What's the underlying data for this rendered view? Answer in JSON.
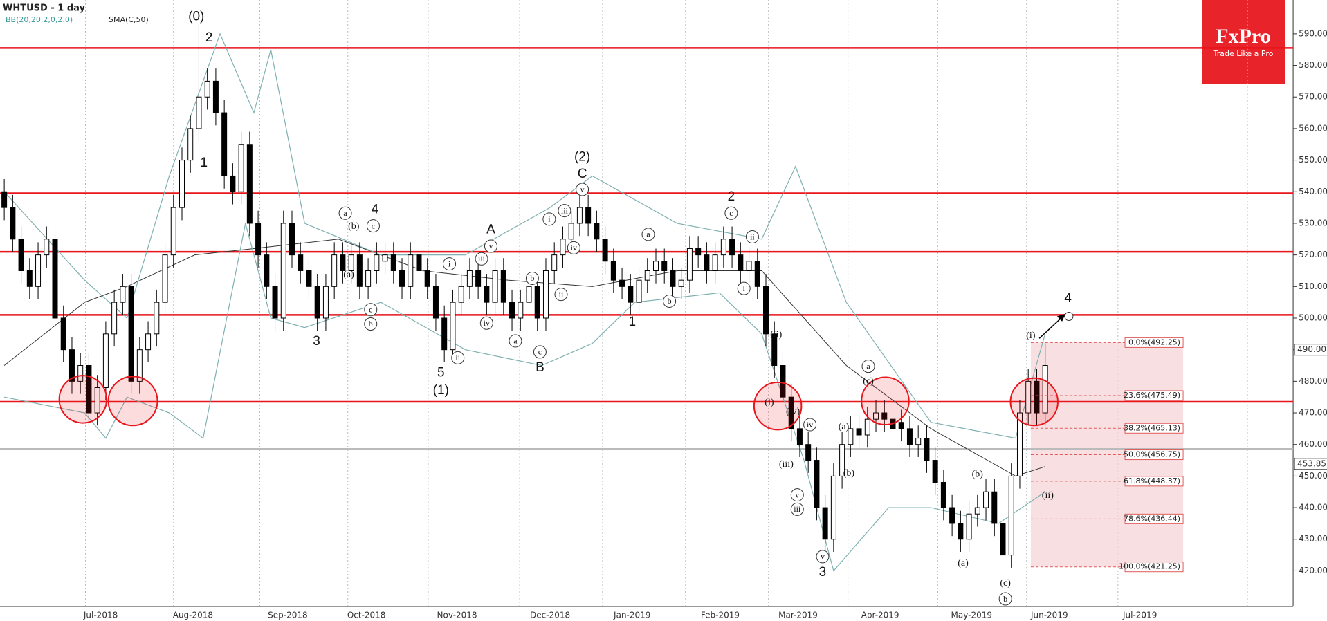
{
  "chart_data": {
    "type": "candlestick",
    "title": "WHTUSD - 1 day",
    "indicator_labels": [
      "BB(20,20,2,0,2.0)",
      "SMA(C,50)"
    ],
    "logo": {
      "brand": "FxPro",
      "tagline": "Trade Like a Pro"
    },
    "ylim": [
      408.7,
      600.7
    ],
    "yticks": [
      {
        "value": 420,
        "label": "420.00"
      },
      {
        "value": 430,
        "label": "430.00"
      },
      {
        "value": 440,
        "label": "440.00"
      },
      {
        "value": 450,
        "label": "450.00"
      },
      {
        "value": 460,
        "label": "460.00"
      },
      {
        "value": 470,
        "label": "470.00"
      },
      {
        "value": 480,
        "label": "480.00"
      },
      {
        "value": 490,
        "label": "490.00"
      },
      {
        "value": 500,
        "label": "500.00"
      },
      {
        "value": 510,
        "label": "510.00"
      },
      {
        "value": 520,
        "label": "520.00"
      },
      {
        "value": 530,
        "label": "530.00"
      },
      {
        "value": 540,
        "label": "540.00"
      },
      {
        "value": 550,
        "label": "550.00"
      },
      {
        "value": 560,
        "label": "560.00"
      },
      {
        "value": 570,
        "label": "570.00"
      },
      {
        "value": 580,
        "label": "580.00"
      },
      {
        "value": 590,
        "label": "590.00"
      }
    ],
    "month_labels": [
      "Jul-2018",
      "Aug-2018",
      "Sep-2018",
      "Oct-2018",
      "Nov-2018",
      "Dec-2018",
      "Jan-2019",
      "Feb-2019",
      "Mar-2019",
      "Apr-2019",
      "May-2019",
      "Jun-2019",
      "Jul-2019"
    ],
    "open": [
      540,
      535,
      525,
      515,
      510,
      520,
      525,
      500,
      490,
      480,
      485,
      470,
      478,
      495,
      505,
      510,
      480,
      490,
      495,
      505,
      520,
      535,
      550,
      560,
      570,
      575,
      565,
      545,
      540,
      555,
      530,
      520,
      510,
      500,
      530,
      520,
      515,
      510,
      500,
      510,
      520,
      515,
      520,
      510,
      515,
      518,
      520,
      515,
      510,
      520,
      515,
      510,
      500,
      490,
      505,
      510,
      515,
      510,
      505,
      515,
      505,
      500,
      505,
      510,
      500,
      515,
      520,
      525,
      530,
      535,
      530,
      525,
      518,
      512,
      510,
      505,
      512,
      515,
      518,
      515,
      510,
      512,
      522,
      520,
      515,
      520,
      525,
      520,
      515,
      518,
      510,
      495,
      485,
      475,
      465,
      460,
      455,
      440,
      430,
      450,
      460,
      465,
      463,
      468,
      470,
      468,
      467,
      465,
      460,
      462,
      455,
      448,
      440,
      435,
      430,
      438,
      440,
      445,
      435,
      425,
      450,
      470,
      480,
      470
    ],
    "high": [
      544,
      539,
      529,
      519,
      524,
      529,
      529,
      504,
      494,
      489,
      489,
      482,
      499,
      509,
      514,
      514,
      494,
      499,
      509,
      524,
      539,
      554,
      564,
      593,
      579,
      579,
      569,
      549,
      559,
      559,
      534,
      524,
      514,
      534,
      534,
      524,
      519,
      514,
      514,
      524,
      524,
      524,
      524,
      519,
      524,
      524,
      524,
      519,
      524,
      524,
      519,
      514,
      504,
      509,
      514,
      519,
      519,
      514,
      519,
      519,
      509,
      509,
      514,
      514,
      519,
      524,
      529,
      534,
      539,
      539,
      534,
      529,
      522,
      516,
      514,
      516,
      519,
      522,
      522,
      519,
      516,
      526,
      526,
      524,
      524,
      529,
      529,
      524,
      522,
      522,
      514,
      499,
      489,
      479,
      469,
      464,
      459,
      444,
      454,
      464,
      469,
      469,
      472,
      474,
      474,
      472,
      471,
      469,
      466,
      466,
      459,
      452,
      444,
      439,
      442,
      444,
      449,
      449,
      439,
      454,
      474,
      484,
      484,
      492
    ],
    "low": [
      531,
      521,
      511,
      506,
      506,
      516,
      496,
      486,
      476,
      476,
      466,
      466,
      474,
      491,
      501,
      476,
      476,
      486,
      491,
      501,
      516,
      531,
      546,
      556,
      566,
      561,
      541,
      536,
      536,
      526,
      516,
      506,
      496,
      496,
      516,
      511,
      506,
      496,
      496,
      506,
      511,
      511,
      506,
      506,
      511,
      514,
      511,
      506,
      506,
      511,
      506,
      496,
      486,
      486,
      501,
      506,
      506,
      501,
      501,
      501,
      496,
      496,
      501,
      496,
      496,
      511,
      516,
      521,
      526,
      526,
      521,
      514,
      508,
      506,
      501,
      501,
      508,
      511,
      511,
      506,
      506,
      508,
      516,
      511,
      511,
      516,
      516,
      511,
      511,
      506,
      491,
      481,
      471,
      461,
      456,
      451,
      436,
      426,
      426,
      446,
      456,
      459,
      459,
      464,
      464,
      461,
      461,
      456,
      456,
      451,
      444,
      436,
      431,
      426,
      426,
      434,
      436,
      431,
      421,
      421,
      446,
      466,
      466,
      466
    ],
    "close": [
      535,
      525,
      515,
      510,
      520,
      525,
      500,
      490,
      480,
      485,
      470,
      478,
      495,
      505,
      510,
      480,
      490,
      495,
      505,
      520,
      535,
      550,
      560,
      570,
      575,
      565,
      545,
      540,
      555,
      530,
      520,
      510,
      500,
      530,
      520,
      515,
      510,
      500,
      510,
      520,
      515,
      520,
      510,
      515,
      520,
      520,
      515,
      510,
      520,
      515,
      510,
      500,
      490,
      505,
      510,
      515,
      510,
      505,
      515,
      505,
      500,
      505,
      510,
      500,
      515,
      520,
      525,
      530,
      535,
      530,
      525,
      518,
      512,
      510,
      505,
      512,
      515,
      518,
      515,
      510,
      512,
      522,
      520,
      515,
      520,
      525,
      520,
      515,
      518,
      510,
      495,
      485,
      475,
      465,
      460,
      455,
      440,
      430,
      450,
      460,
      465,
      463,
      468,
      470,
      468,
      465,
      465,
      460,
      462,
      455,
      448,
      440,
      435,
      430,
      438,
      440,
      445,
      435,
      425,
      450,
      470,
      480,
      470,
      485
    ],
    "series": [
      {
        "name": "SMA(C,50)",
        "color": "#333333",
        "x": [
          0,
          9.5,
          14.5,
          22.5,
          29.5,
          39.5,
          49.5,
          59.5,
          69.5,
          79.5,
          89.5,
          99.5,
          109.5,
          119.5,
          123
        ],
        "values": [
          485,
          505,
          510,
          520,
          522,
          525,
          515,
          512,
          510,
          515,
          515,
          485,
          465,
          450,
          453
        ]
      },
      {
        "name": "BB upper",
        "color": "#7fb0b0",
        "x": [
          0,
          9.5,
          14.5,
          19.5,
          25.5,
          29.5,
          31.5,
          35.5,
          44.5,
          54.5,
          64.5,
          69.5,
          79.5,
          89.5,
          93.5,
          99.5,
          109.5,
          119.5,
          123
        ],
        "values": [
          540,
          512,
          500,
          545,
          590,
          565,
          585,
          530,
          520,
          520,
          535,
          545,
          530,
          525,
          548,
          505,
          467,
          462,
          495
        ]
      },
      {
        "name": "BB lower",
        "color": "#7fb0b0",
        "x": [
          0,
          9.5,
          12,
          14.5,
          19.5,
          23.5,
          28.5,
          31.5,
          35.5,
          44.5,
          54.5,
          63.5,
          69.5,
          74.5,
          84.5,
          89.5,
          94.5,
          98,
          104.5,
          109.5,
          117.5,
          123
        ],
        "values": [
          475,
          470,
          462,
          475,
          470,
          462,
          530,
          500,
          497,
          505,
          490,
          485,
          492,
          505,
          508,
          495,
          455,
          420,
          440,
          440,
          435,
          445
        ]
      }
    ],
    "horizontal_lines": [
      585.5,
      539.5,
      521,
      501,
      473.5
    ],
    "support_line": 458.5,
    "price_labels": [
      {
        "value": 490,
        "label": "490.00"
      },
      {
        "value": 453.85,
        "label": "453.85"
      }
    ],
    "fibonacci": [
      {
        "value": 492.25,
        "label": "0.0%(492.25)"
      },
      {
        "value": 475.49,
        "label": "23.6%(475.49)"
      },
      {
        "value": 465.13,
        "label": "38.2%(465.13)"
      },
      {
        "value": 456.75,
        "label": "50.0%(456.75)"
      },
      {
        "value": 448.37,
        "label": "61.8%(448.37)"
      },
      {
        "value": 436.44,
        "label": "78.6%(436.44)"
      },
      {
        "value": 421.25,
        "label": "100.0%(421.25)"
      }
    ],
    "wave_labels": [
      "(0)",
      "2",
      "1",
      "3",
      "4",
      "5",
      "(1)",
      "A",
      "B",
      "C",
      "(2)",
      "1",
      "2",
      "3",
      "4",
      "(b)",
      "(a)",
      "(ii)",
      "(i)",
      "(iv)",
      "(iii)",
      "(a)",
      "(b)",
      "(c)",
      "(b)",
      "(a)",
      "(c)",
      "(i)",
      "(ii)"
    ],
    "wave_circled": [
      "a",
      "c",
      "c",
      "b",
      "i",
      "ii",
      "iii",
      "v",
      "iv",
      "a",
      "b",
      "c",
      "i",
      "iii",
      "v",
      "iv",
      "ii",
      "a",
      "b",
      "c",
      "ii",
      "i",
      "iv",
      "v",
      "iii",
      "v",
      "a",
      "b"
    ]
  }
}
